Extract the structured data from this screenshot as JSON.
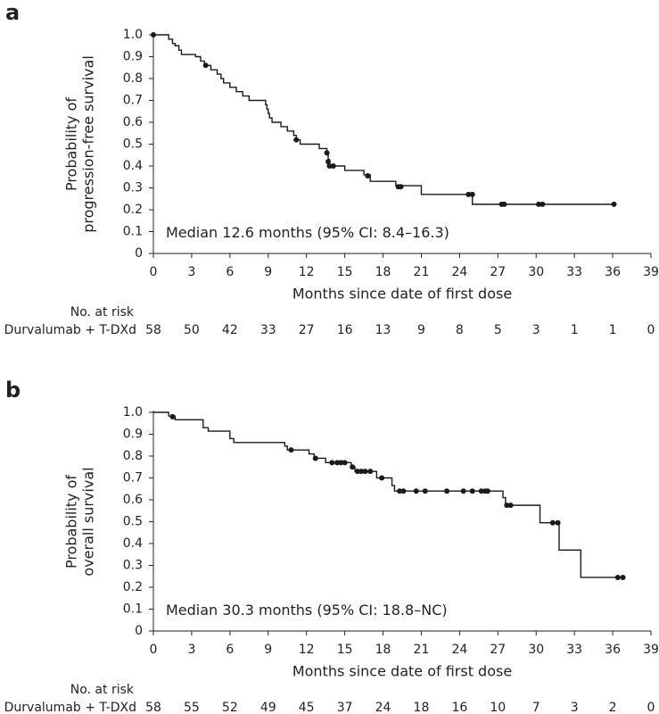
{
  "chart_data": [
    {
      "type": "km",
      "panel": "a",
      "ylabel": [
        "Probability of",
        "progression-free survival"
      ],
      "xlabel": "Months since date of first dose",
      "annotation": "Median 12.6 months (95% CI: 8.4–16.3)",
      "xlim": [
        0,
        39
      ],
      "xticks": [
        0,
        3,
        6,
        9,
        12,
        15,
        18,
        21,
        24,
        27,
        30,
        33,
        36,
        39
      ],
      "ylim": [
        0,
        1
      ],
      "yticks": [
        0,
        0.1,
        0.2,
        0.3,
        0.4,
        0.5,
        0.6,
        0.7,
        0.8,
        0.9,
        {
          "value": 1,
          "label": "1.0"
        }
      ],
      "series": [
        {
          "mark": "step",
          "color": "#1a1a1a",
          "x": [
            0,
            1.2,
            1.5,
            1.7,
            2.0,
            2.2,
            3.3,
            3.7,
            4.0,
            4.5,
            5.0,
            5.3,
            5.5,
            6.0,
            6.5,
            7.0,
            7.5,
            8.8,
            8.9,
            9.0,
            9.1,
            9.3,
            10.0,
            10.5,
            11.0,
            11.2,
            11.5,
            13.0,
            13.6,
            13.7,
            13.8,
            15.0,
            16.5,
            17.0,
            19.0,
            21.0,
            25.0,
            36.1
          ],
          "values": [
            1,
            0.98,
            0.96,
            0.95,
            0.93,
            0.91,
            0.9,
            0.88,
            0.86,
            0.84,
            0.82,
            0.8,
            0.78,
            0.76,
            0.74,
            0.72,
            0.7,
            0.68,
            0.66,
            0.64,
            0.62,
            0.6,
            0.58,
            0.56,
            0.54,
            0.52,
            0.5,
            0.48,
            0.46,
            0.43,
            0.4,
            0.38,
            0.36,
            0.33,
            0.31,
            0.27,
            0.225,
            0.225
          ]
        },
        {
          "mark": "point",
          "color": "#1a1a1a",
          "x": [
            0,
            4.1,
            11.2,
            13.6,
            13.7,
            13.8,
            14.1,
            16.8,
            19.2,
            19.4,
            24.7,
            25.0,
            27.3,
            27.5,
            30.2,
            30.5,
            36.1
          ],
          "values": [
            1,
            0.86,
            0.52,
            0.46,
            0.42,
            0.4,
            0.4,
            0.355,
            0.305,
            0.305,
            0.27,
            0.27,
            0.225,
            0.225,
            0.225,
            0.225,
            0.225
          ]
        }
      ],
      "risk_table": {
        "title": "No. at risk",
        "label": "Durvalumab + T-DXd",
        "values": [
          58,
          50,
          42,
          33,
          27,
          16,
          13,
          9,
          8,
          5,
          3,
          1,
          1,
          0
        ]
      }
    },
    {
      "type": "km",
      "panel": "b",
      "ylabel": [
        "Probability of",
        "overall survival"
      ],
      "xlabel": "Months since date of first dose",
      "annotation": "Median 30.3 months (95% CI: 18.8–NC)",
      "xlim": [
        0,
        39
      ],
      "xticks": [
        0,
        3,
        6,
        9,
        12,
        15,
        18,
        21,
        24,
        27,
        30,
        33,
        36,
        39
      ],
      "ylim": [
        0,
        1
      ],
      "yticks": [
        0,
        0.1,
        0.2,
        0.3,
        0.4,
        0.5,
        0.6,
        0.7,
        0.8,
        0.9,
        {
          "value": 1,
          "label": "1.0"
        }
      ],
      "series": [
        {
          "mark": "step",
          "color": "#1a1a1a",
          "x": [
            0,
            1.2,
            1.7,
            3.9,
            4.3,
            6.0,
            6.3,
            10.3,
            10.5,
            12.2,
            12.6,
            13.5,
            15.5,
            15.8,
            17.5,
            18.7,
            18.9,
            27.4,
            27.6,
            30.3,
            31.8,
            33.5,
            36.8
          ],
          "values": [
            1,
            0.983,
            0.966,
            0.93,
            0.914,
            0.88,
            0.862,
            0.845,
            0.828,
            0.81,
            0.79,
            0.77,
            0.75,
            0.73,
            0.7,
            0.665,
            0.64,
            0.61,
            0.575,
            0.495,
            0.37,
            0.245,
            0.245
          ]
        },
        {
          "mark": "point",
          "color": "#1a1a1a",
          "x": [
            1.5,
            10.8,
            12.7,
            14.0,
            14.4,
            14.7,
            15.0,
            15.6,
            16.0,
            16.3,
            16.6,
            17.0,
            17.9,
            19.3,
            19.6,
            20.6,
            21.3,
            23.0,
            24.3,
            25.0,
            25.7,
            26.0,
            26.2,
            27.7,
            28.0,
            31.3,
            31.7,
            36.4,
            36.8
          ],
          "values": [
            0.98,
            0.828,
            0.79,
            0.77,
            0.77,
            0.77,
            0.77,
            0.75,
            0.73,
            0.73,
            0.73,
            0.73,
            0.7,
            0.64,
            0.64,
            0.64,
            0.64,
            0.64,
            0.64,
            0.64,
            0.64,
            0.64,
            0.64,
            0.575,
            0.575,
            0.495,
            0.495,
            0.245,
            0.245
          ]
        }
      ],
      "risk_table": {
        "title": "No. at risk",
        "label": "Durvalumab + T-DXd",
        "values": [
          58,
          55,
          52,
          49,
          45,
          37,
          24,
          18,
          16,
          10,
          7,
          3,
          2,
          0
        ]
      }
    }
  ]
}
